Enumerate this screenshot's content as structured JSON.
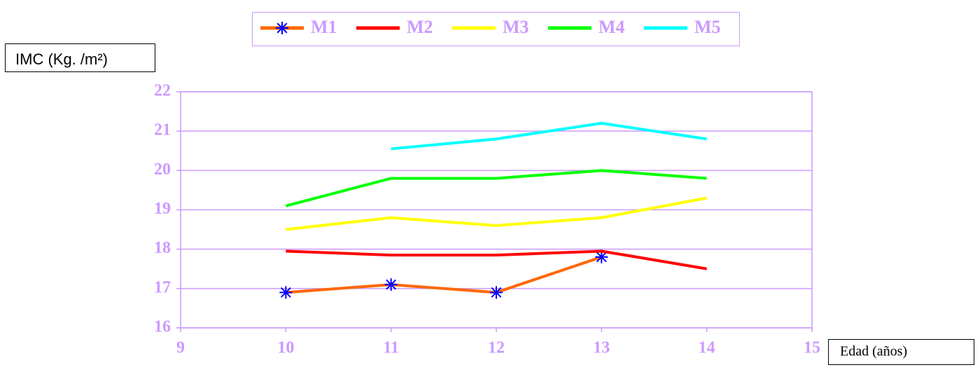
{
  "chart_data": {
    "type": "line",
    "y_label": "IMC (Kg. /m²)",
    "x_label": "Edad (años)",
    "x": [
      10,
      11,
      12,
      13,
      14
    ],
    "series": [
      {
        "name": "M1",
        "color": "#ff6600",
        "marker": "asterisk",
        "marker_color": "#0000ff",
        "values": [
          16.9,
          17.1,
          16.9,
          17.8,
          null
        ]
      },
      {
        "name": "M2",
        "color": "#ff0000",
        "values": [
          17.95,
          17.85,
          17.85,
          17.95,
          17.5
        ]
      },
      {
        "name": "M3",
        "color": "#ffff00",
        "values": [
          18.5,
          18.8,
          18.6,
          18.8,
          19.3
        ]
      },
      {
        "name": "M4",
        "color": "#00ff00",
        "values": [
          19.1,
          19.8,
          19.8,
          20.0,
          19.8
        ]
      },
      {
        "name": "M5",
        "color": "#00ffff",
        "values": [
          null,
          20.55,
          20.8,
          21.2,
          20.8
        ]
      }
    ],
    "xlim": [
      9,
      15
    ],
    "xticks": [
      9,
      10,
      11,
      12,
      13,
      14,
      15
    ],
    "ylim": [
      16,
      22
    ],
    "yticks": [
      16,
      17,
      18,
      19,
      20,
      21,
      22
    ],
    "grid": true,
    "legend": "top"
  }
}
